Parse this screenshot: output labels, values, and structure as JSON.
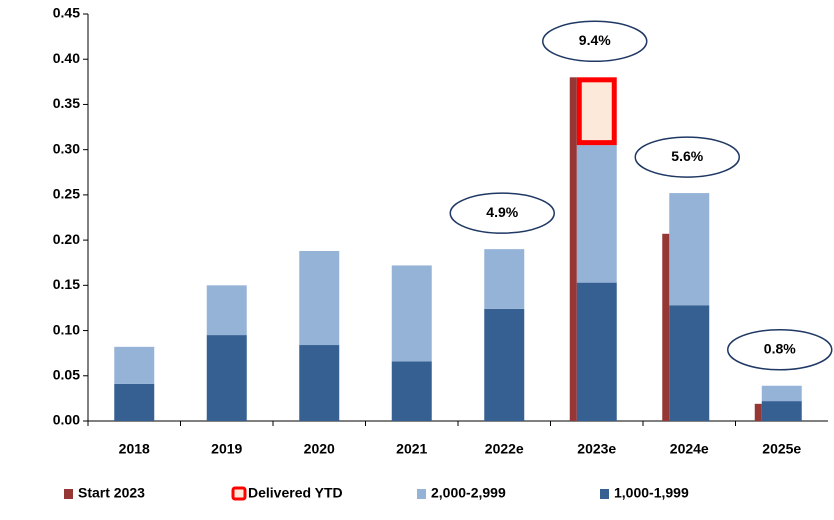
{
  "chart_data": {
    "type": "bar",
    "categories": [
      "2018",
      "2019",
      "2020",
      "2021",
      "2022e",
      "2023e",
      "2024e",
      "2025e"
    ],
    "series": [
      {
        "name": "Start 2023",
        "color": "#953735",
        "kind": "side",
        "values": [
          null,
          null,
          null,
          null,
          null,
          0.38,
          0.207,
          0.019
        ]
      },
      {
        "name": "Delivered YTD",
        "color": "#ff0000",
        "fill": "#fde9d9",
        "kind": "outline",
        "values": [
          null,
          null,
          null,
          null,
          null,
          0.075,
          null,
          null
        ]
      },
      {
        "name": "2,000-2,999",
        "color": "#95b3d7",
        "kind": "stack",
        "values": [
          0.041,
          0.055,
          0.104,
          0.106,
          0.066,
          0.152,
          0.124,
          0.017
        ]
      },
      {
        "name": "1,000-1,999",
        "color": "#376092",
        "kind": "stack",
        "values": [
          0.041,
          0.095,
          0.084,
          0.066,
          0.124,
          0.153,
          0.128,
          0.022
        ]
      }
    ],
    "ylim": [
      0,
      0.45
    ],
    "yticks": [
      {
        "value": 0,
        "label": "0.00"
      },
      {
        "value": 0.05,
        "label": "0.05"
      },
      {
        "value": 0.1,
        "label": "0.10"
      },
      {
        "value": 0.15,
        "label": "0.15"
      },
      {
        "value": 0.2,
        "label": "0.20"
      },
      {
        "value": 0.25,
        "label": "0.25"
      },
      {
        "value": 0.3,
        "label": "0.30"
      },
      {
        "value": 0.35,
        "label": "0.35"
      },
      {
        "value": 0.4,
        "label": "0.40"
      },
      {
        "value": 0.45,
        "label": "0.45"
      }
    ],
    "annotations": [
      {
        "category": "2022e",
        "text": "4.9%"
      },
      {
        "category": "2023e",
        "text": "9.4%"
      },
      {
        "category": "2024e",
        "text": "5.6%"
      },
      {
        "category": "2025e",
        "text": "0.8%"
      }
    ],
    "legend": "bottom"
  }
}
